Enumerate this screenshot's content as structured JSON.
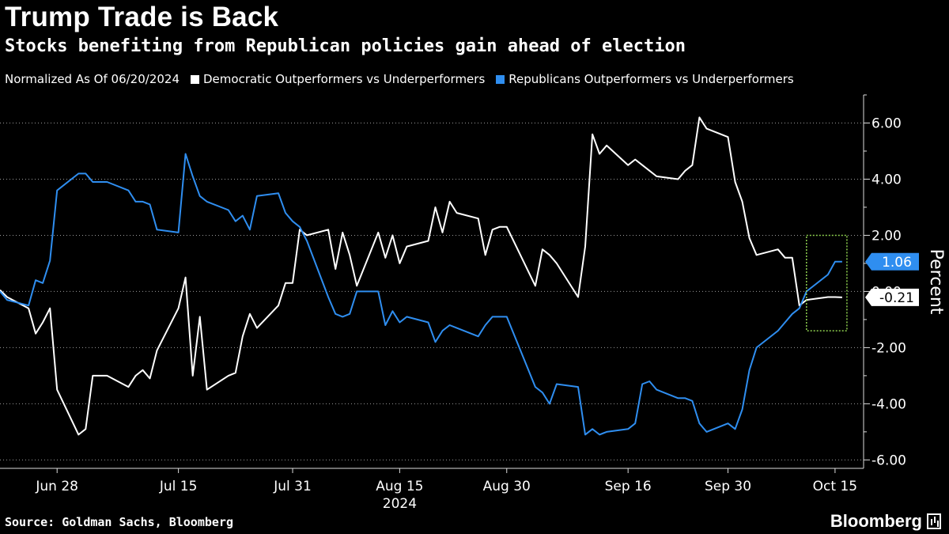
{
  "header": {
    "title": "Trump Trade is Back",
    "subtitle": "Stocks benefiting from Republican policies gain ahead of election"
  },
  "legend": {
    "note": "Normalized As Of 06/20/2024",
    "items": [
      {
        "label": "Democratic Outperformers vs Underperformers",
        "color": "#ffffff"
      },
      {
        "label": "Republicans Outperformers vs Underperformers",
        "color": "#2f8ef0"
      }
    ]
  },
  "footer": {
    "source": "Source: Goldman Sachs, Bloomberg",
    "brand": "Bloomberg"
  },
  "chart_data": {
    "type": "line",
    "title": "Trump Trade is Back",
    "subtitle": "Stocks benefiting from Republican policies gain ahead of election",
    "ylabel": "Percent",
    "ylim": [
      -6.3,
      7.0
    ],
    "xlim": [
      "2024-06-20",
      "2024-10-19"
    ],
    "yticks": [
      6,
      4,
      2,
      0,
      -2,
      -4,
      -6
    ],
    "ytick_labels": [
      "6.00",
      "4.00",
      "2.00",
      "0.00",
      "-2.00",
      "-4.00",
      "-6.00"
    ],
    "xticks": [
      "2024-06-28",
      "2024-07-15",
      "2024-07-31",
      "2024-08-15",
      "2024-08-30",
      "2024-09-16",
      "2024-09-30",
      "2024-10-15"
    ],
    "xtick_labels": [
      "Jun 28",
      "Jul 15",
      "Jul 31",
      "Aug 15",
      "Aug 30",
      "Sep 16",
      "Sep 30",
      "Oct 15"
    ],
    "year_label": "2024",
    "end_labels": [
      "1.06",
      "-0.21"
    ],
    "series": [
      {
        "name": "Democratic Outperformers vs Underperformers",
        "color": "#ffffff",
        "x": [
          "2024-06-20",
          "2024-06-21",
          "2024-06-24",
          "2024-06-25",
          "2024-06-26",
          "2024-06-27",
          "2024-06-28",
          "2024-07-01",
          "2024-07-02",
          "2024-07-03",
          "2024-07-05",
          "2024-07-08",
          "2024-07-09",
          "2024-07-10",
          "2024-07-11",
          "2024-07-12",
          "2024-07-15",
          "2024-07-16",
          "2024-07-17",
          "2024-07-18",
          "2024-07-19",
          "2024-07-22",
          "2024-07-23",
          "2024-07-24",
          "2024-07-25",
          "2024-07-26",
          "2024-07-29",
          "2024-07-30",
          "2024-07-31",
          "2024-08-01",
          "2024-08-02",
          "2024-08-05",
          "2024-08-06",
          "2024-08-07",
          "2024-08-08",
          "2024-08-09",
          "2024-08-12",
          "2024-08-13",
          "2024-08-14",
          "2024-08-15",
          "2024-08-16",
          "2024-08-19",
          "2024-08-20",
          "2024-08-21",
          "2024-08-22",
          "2024-08-23",
          "2024-08-26",
          "2024-08-27",
          "2024-08-28",
          "2024-08-29",
          "2024-08-30",
          "2024-09-03",
          "2024-09-04",
          "2024-09-05",
          "2024-09-06",
          "2024-09-09",
          "2024-09-10",
          "2024-09-11",
          "2024-09-12",
          "2024-09-13",
          "2024-09-16",
          "2024-09-17",
          "2024-09-18",
          "2024-09-19",
          "2024-09-20",
          "2024-09-23",
          "2024-09-24",
          "2024-09-25",
          "2024-09-26",
          "2024-09-27",
          "2024-09-30",
          "2024-10-01",
          "2024-10-02",
          "2024-10-03",
          "2024-10-04",
          "2024-10-07",
          "2024-10-08",
          "2024-10-09",
          "2024-10-10",
          "2024-10-11",
          "2024-10-14",
          "2024-10-15",
          "2024-10-16"
        ],
        "y": [
          0.05,
          -0.2,
          -0.6,
          -1.5,
          -1.1,
          -0.6,
          -3.5,
          -5.1,
          -4.9,
          -3.0,
          -3.0,
          -3.4,
          -3.0,
          -2.8,
          -3.1,
          -2.1,
          -0.6,
          0.5,
          -3.0,
          -0.9,
          -3.5,
          -3.0,
          -2.9,
          -1.6,
          -0.8,
          -1.3,
          -0.5,
          0.3,
          0.3,
          2.2,
          2.0,
          2.2,
          0.8,
          2.1,
          1.3,
          0.2,
          2.1,
          1.2,
          2.0,
          1.0,
          1.6,
          1.8,
          3.0,
          2.1,
          3.2,
          2.8,
          2.6,
          1.3,
          2.2,
          2.3,
          2.3,
          0.2,
          1.5,
          1.3,
          1.0,
          -0.2,
          1.6,
          5.6,
          4.9,
          5.2,
          4.5,
          4.7,
          4.5,
          4.3,
          4.1,
          4.0,
          4.3,
          4.5,
          6.2,
          5.8,
          5.5,
          3.9,
          3.2,
          1.9,
          1.3,
          1.5,
          1.2,
          1.2,
          -0.5,
          -0.3,
          -0.2,
          -0.2,
          -0.21
        ]
      },
      {
        "name": "Republicans Outperformers vs Underperformers",
        "color": "#2f8ef0",
        "x": [
          "2024-06-20",
          "2024-06-21",
          "2024-06-24",
          "2024-06-25",
          "2024-06-26",
          "2024-06-27",
          "2024-06-28",
          "2024-07-01",
          "2024-07-02",
          "2024-07-03",
          "2024-07-05",
          "2024-07-08",
          "2024-07-09",
          "2024-07-10",
          "2024-07-11",
          "2024-07-12",
          "2024-07-15",
          "2024-07-16",
          "2024-07-17",
          "2024-07-18",
          "2024-07-19",
          "2024-07-22",
          "2024-07-23",
          "2024-07-24",
          "2024-07-25",
          "2024-07-26",
          "2024-07-29",
          "2024-07-30",
          "2024-07-31",
          "2024-08-01",
          "2024-08-02",
          "2024-08-05",
          "2024-08-06",
          "2024-08-07",
          "2024-08-08",
          "2024-08-09",
          "2024-08-12",
          "2024-08-13",
          "2024-08-14",
          "2024-08-15",
          "2024-08-16",
          "2024-08-19",
          "2024-08-20",
          "2024-08-21",
          "2024-08-22",
          "2024-08-23",
          "2024-08-26",
          "2024-08-27",
          "2024-08-28",
          "2024-08-29",
          "2024-08-30",
          "2024-09-03",
          "2024-09-04",
          "2024-09-05",
          "2024-09-06",
          "2024-09-09",
          "2024-09-10",
          "2024-09-11",
          "2024-09-12",
          "2024-09-13",
          "2024-09-16",
          "2024-09-17",
          "2024-09-18",
          "2024-09-19",
          "2024-09-20",
          "2024-09-23",
          "2024-09-24",
          "2024-09-25",
          "2024-09-26",
          "2024-09-27",
          "2024-09-30",
          "2024-10-01",
          "2024-10-02",
          "2024-10-03",
          "2024-10-04",
          "2024-10-07",
          "2024-10-08",
          "2024-10-09",
          "2024-10-10",
          "2024-10-11",
          "2024-10-14",
          "2024-10-15",
          "2024-10-16"
        ],
        "y": [
          0.0,
          -0.3,
          -0.5,
          0.4,
          0.3,
          1.1,
          3.6,
          4.2,
          4.2,
          3.9,
          3.9,
          3.6,
          3.2,
          3.2,
          3.1,
          2.2,
          2.1,
          4.9,
          4.1,
          3.4,
          3.2,
          2.9,
          2.5,
          2.7,
          2.2,
          3.4,
          3.5,
          2.8,
          2.5,
          2.3,
          1.8,
          -0.2,
          -0.8,
          -0.9,
          -0.8,
          0.0,
          0.0,
          -1.2,
          -0.7,
          -1.1,
          -0.9,
          -1.1,
          -1.8,
          -1.4,
          -1.2,
          -1.3,
          -1.6,
          -1.2,
          -0.9,
          -0.9,
          -0.9,
          -3.4,
          -3.6,
          -4.0,
          -3.3,
          -3.4,
          -5.1,
          -4.9,
          -5.1,
          -5.0,
          -4.9,
          -4.7,
          -3.3,
          -3.2,
          -3.5,
          -3.8,
          -3.8,
          -3.9,
          -4.7,
          -5.0,
          -4.7,
          -4.9,
          -4.2,
          -2.8,
          -2.0,
          -1.4,
          -1.1,
          -0.8,
          -0.6,
          0.0,
          0.6,
          1.06,
          1.06
        ]
      }
    ],
    "highlight": {
      "x": [
        "2024-10-11",
        "2024-10-16"
      ],
      "y": [
        -1.4,
        2.0
      ],
      "color": "#8fd14f"
    }
  }
}
